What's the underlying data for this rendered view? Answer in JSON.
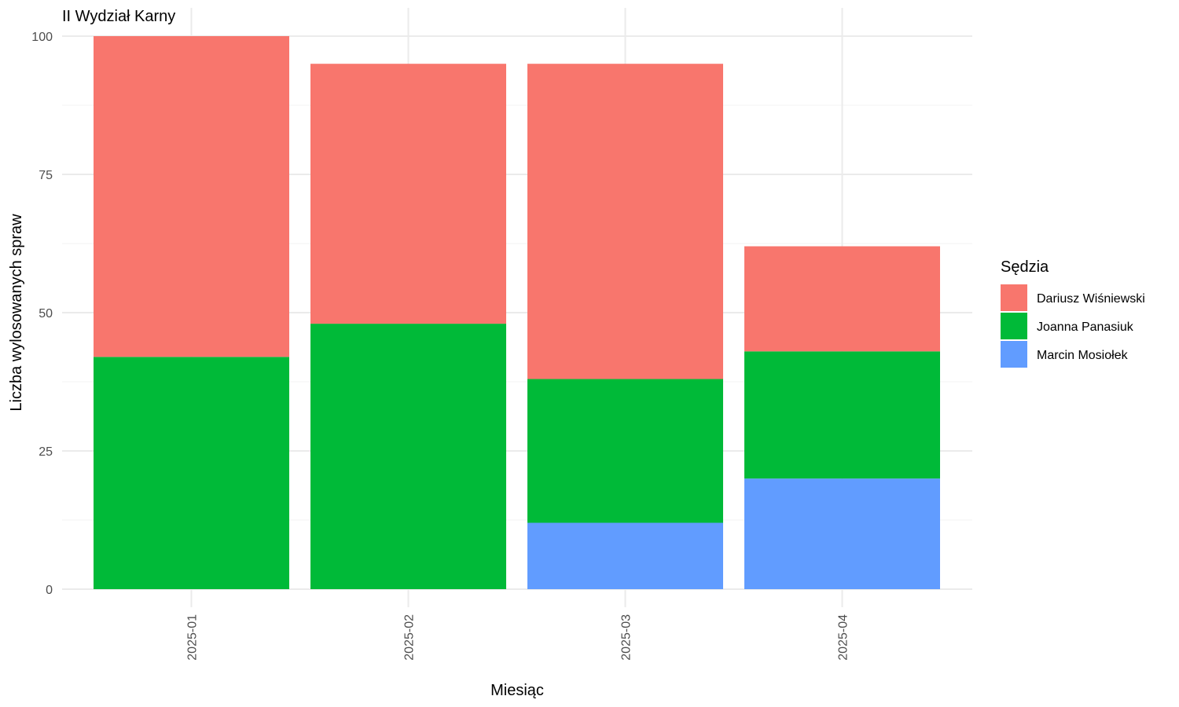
{
  "chart_data": {
    "type": "bar",
    "stacked": true,
    "title": "II Wydział Karny",
    "xlabel": "Miesiąc",
    "ylabel": "Liczba wylosowanych spraw",
    "categories": [
      "2025-01",
      "2025-02",
      "2025-03",
      "2025-04"
    ],
    "ylim": [
      0,
      100
    ],
    "yticks": [
      0,
      25,
      50,
      75,
      100
    ],
    "grid": true,
    "legend": {
      "title": "Sędzia",
      "position": "right"
    },
    "series": [
      {
        "name": "Marcin Mosiołek",
        "color": "#619cff",
        "values": [
          0,
          0,
          12,
          20
        ]
      },
      {
        "name": "Joanna Panasiuk",
        "color": "#00ba38",
        "values": [
          42,
          48,
          26,
          23
        ]
      },
      {
        "name": "Dariusz Wiśniewski",
        "color": "#f8766d",
        "values": [
          58,
          47,
          57,
          19
        ]
      }
    ],
    "legend_order": [
      "Dariusz Wiśniewski",
      "Joanna Panasiuk",
      "Marcin Mosiołek"
    ]
  }
}
